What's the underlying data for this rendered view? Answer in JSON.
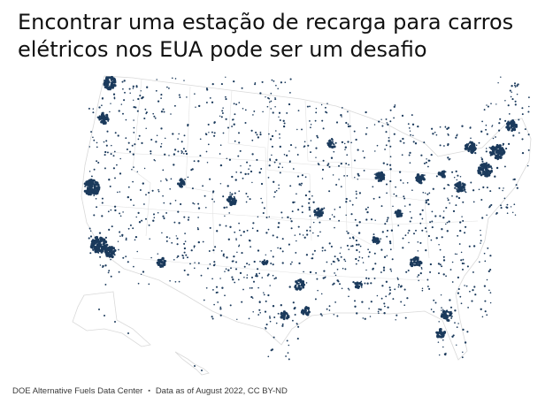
{
  "title": "Encontrar uma estação de recarga para carros elétricos nos EUA pode ser um desafio",
  "footer": {
    "source": "DOE Alternative Fuels Data Center",
    "separator": "▪",
    "note": "Data as of August 2022, CC BY-ND"
  },
  "map": {
    "subject": "EV charging stations, United States",
    "colors": {
      "dot": "#1b3a5c",
      "state_border": "#d9d9d9",
      "land": "#ffffff"
    }
  }
}
